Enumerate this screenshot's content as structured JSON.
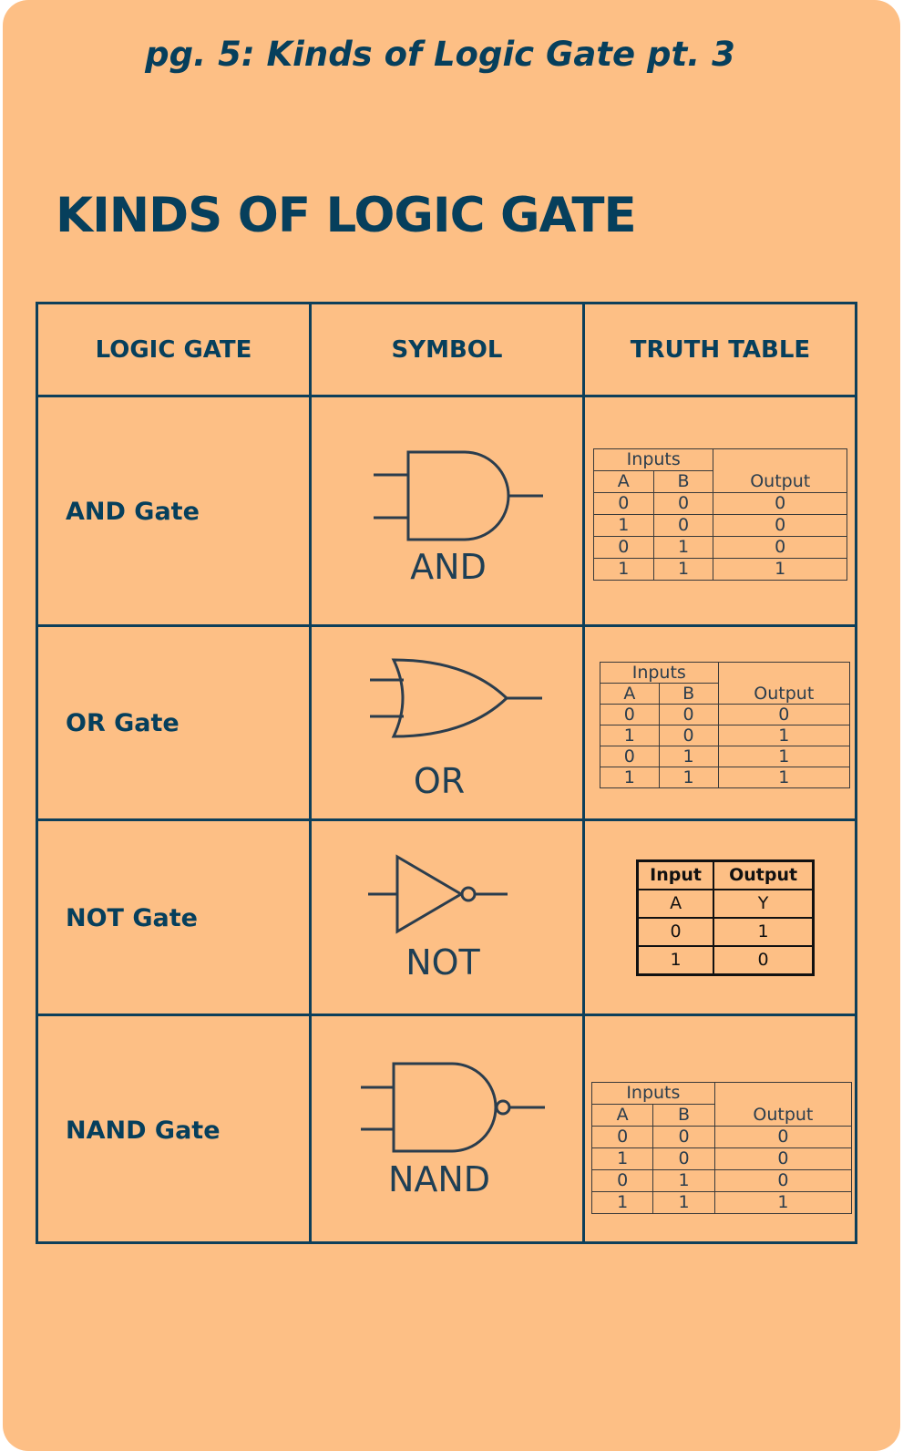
{
  "page_heading": "pg. 5: Kinds of Logic Gate pt. 3",
  "title": "KINDS OF LOGIC GATE",
  "columns": [
    "LOGIC GATE",
    "SYMBOL",
    "TRUTH TABLE"
  ],
  "rows": [
    {
      "gate": "AND Gate",
      "symbol_label": "AND",
      "truth_table": {
        "inputs_label": "Inputs",
        "col_a": "A",
        "col_b": "B",
        "col_out": "Output",
        "rows": [
          [
            "0",
            "0",
            "0"
          ],
          [
            "1",
            "0",
            "0"
          ],
          [
            "0",
            "1",
            "0"
          ],
          [
            "1",
            "1",
            "1"
          ]
        ]
      }
    },
    {
      "gate": "OR Gate",
      "symbol_label": "OR",
      "truth_table": {
        "inputs_label": "Inputs",
        "col_a": "A",
        "col_b": "B",
        "col_out": "Output",
        "rows": [
          [
            "0",
            "0",
            "0"
          ],
          [
            "1",
            "0",
            "1"
          ],
          [
            "0",
            "1",
            "1"
          ],
          [
            "1",
            "1",
            "1"
          ]
        ]
      }
    },
    {
      "gate": "NOT Gate",
      "symbol_label": "NOT",
      "truth_table": {
        "col_in": "Input",
        "col_out": "Output",
        "rows": [
          [
            "A",
            "Y"
          ],
          [
            "0",
            "1"
          ],
          [
            "1",
            "0"
          ]
        ]
      }
    },
    {
      "gate": "NAND Gate",
      "symbol_label": "NAND",
      "truth_table": {
        "inputs_label": "Inputs",
        "col_a": "A",
        "col_b": "B",
        "col_out": "Output",
        "rows": [
          [
            "0",
            "0",
            "0"
          ],
          [
            "1",
            "0",
            "0"
          ],
          [
            "0",
            "1",
            "0"
          ],
          [
            "1",
            "1",
            "1"
          ]
        ]
      }
    }
  ],
  "colors": {
    "background": "#fdbf85",
    "ink": "#063f5c"
  }
}
